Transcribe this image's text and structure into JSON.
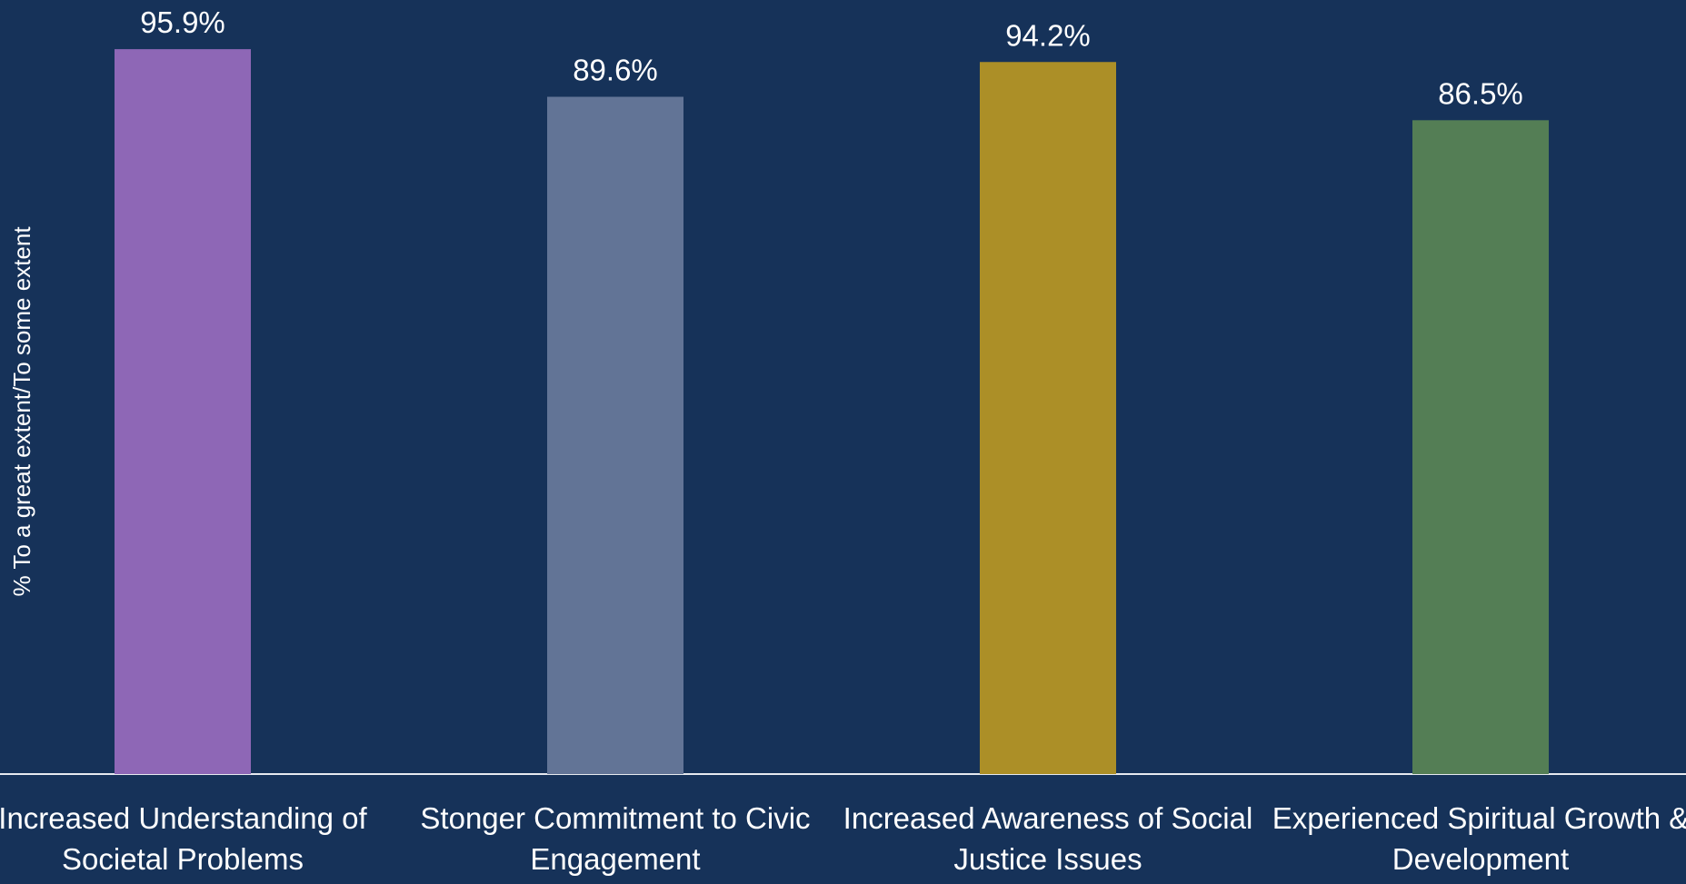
{
  "chart_data": {
    "type": "bar",
    "y_label": "% To a great extent/To some extent",
    "categories": [
      "Increased Understanding of Societal Problems",
      "Stonger Commitment to Civic Engagement",
      "Increased Awareness of Social Justice Issues",
      "Experienced Spiritual Growth & Development"
    ],
    "values": [
      95.9,
      89.6,
      94.2,
      86.5
    ],
    "value_labels": [
      "95.9%",
      "89.6%",
      "94.2%",
      "86.5%"
    ],
    "colors": [
      "#8e67b6",
      "#627496",
      "#ac8f27",
      "#547e55"
    ],
    "ylim": [
      0,
      100
    ]
  }
}
